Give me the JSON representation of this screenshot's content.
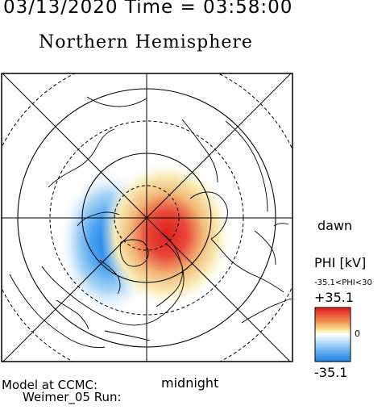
{
  "header": {
    "datetime": "03/13/2020 Time = 03:58:00"
  },
  "title": "Northern Hemisphere",
  "orientation": {
    "dawn": "dawn",
    "midnight": "midnight"
  },
  "colorbar": {
    "title": "PHI [kV]",
    "range_text": "-35.1<PHI<30",
    "max_label": "+35.1",
    "zero_label": "0",
    "min_label": "-35.1",
    "max_value": 35.1,
    "min_value": -35.1,
    "colors": {
      "max": "#e01e1e",
      "mid_high": "#f3e07a",
      "zero": "#ffffff",
      "mid_low": "#7fc0f2",
      "min": "#1a7fe8"
    }
  },
  "model": {
    "line1": "Model at CCMC:",
    "line2": "Weimer_05 Run:"
  },
  "map": {
    "projection": "polar",
    "pole": "north",
    "lat_circles_deg": [
      80,
      70,
      60,
      50,
      40
    ],
    "solid_lat_circles_deg": [
      70,
      50
    ],
    "dashed_lat_circles_deg": [
      80,
      60,
      40
    ],
    "potential_cells": [
      {
        "sign": "negative",
        "peak_kV": -35.1
      },
      {
        "sign": "positive",
        "peak_kV": 35.1
      }
    ]
  }
}
